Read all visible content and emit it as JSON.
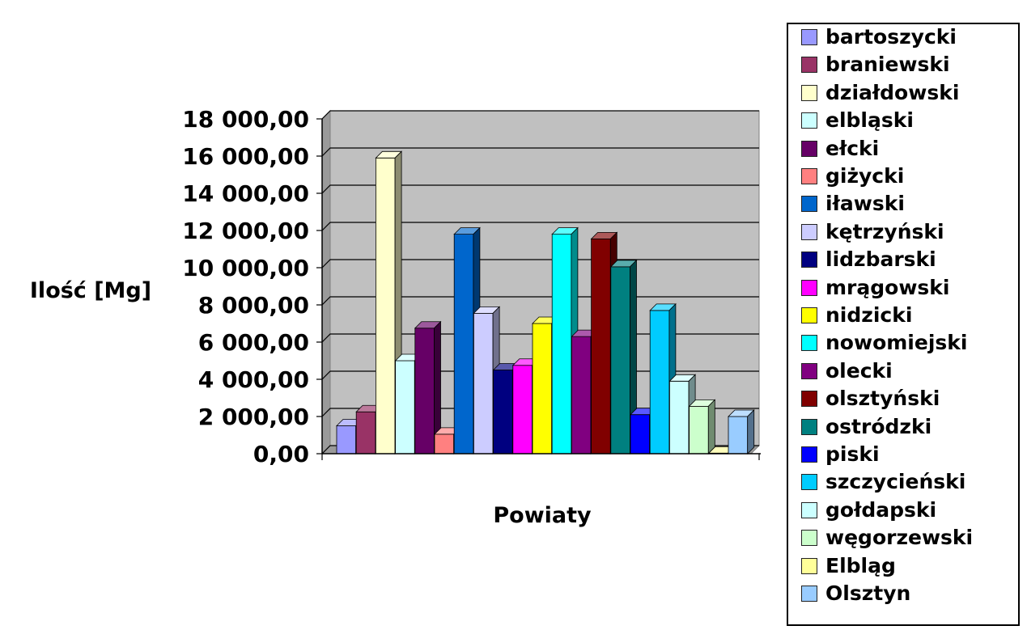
{
  "chart_data": {
    "type": "bar",
    "title": "",
    "xlabel": "Powiaty",
    "ylabel": "Ilość [Mg]",
    "ylim": [
      0,
      18000
    ],
    "yticks": [
      "0,00",
      "2 000,00",
      "4 000,00",
      "6 000,00",
      "8 000,00",
      "10 000,00",
      "12 000,00",
      "14 000,00",
      "16 000,00",
      "18 000,00"
    ],
    "grid": true,
    "legend_position": "right",
    "series": [
      {
        "name": "bartoszycki",
        "value": 1500,
        "color": "#9999ff"
      },
      {
        "name": "braniewski",
        "value": 2250,
        "color": "#993366"
      },
      {
        "name": "działdowski",
        "value": 15900,
        "color": "#ffffcc"
      },
      {
        "name": "elbląski",
        "value": 5000,
        "color": "#ccffff"
      },
      {
        "name": "ełcki",
        "value": 6750,
        "color": "#660066"
      },
      {
        "name": "giżycki",
        "value": 1050,
        "color": "#ff8080"
      },
      {
        "name": "iławski",
        "value": 11800,
        "color": "#0066cc"
      },
      {
        "name": "kętrzyński",
        "value": 7550,
        "color": "#ccccff"
      },
      {
        "name": "lidzbarski",
        "value": 4500,
        "color": "#000080"
      },
      {
        "name": "mrągowski",
        "value": 4750,
        "color": "#ff00ff"
      },
      {
        "name": "nidzicki",
        "value": 7000,
        "color": "#ffff00"
      },
      {
        "name": "nowomiejski",
        "value": 11800,
        "color": "#00ffff"
      },
      {
        "name": "olecki",
        "value": 6300,
        "color": "#800080"
      },
      {
        "name": "olsztyński",
        "value": 11550,
        "color": "#800000"
      },
      {
        "name": "ostródzki",
        "value": 10050,
        "color": "#008080"
      },
      {
        "name": "piski",
        "value": 2100,
        "color": "#0000ff"
      },
      {
        "name": "szczycieński",
        "value": 7700,
        "color": "#00ccff"
      },
      {
        "name": "gołdapski",
        "value": 3900,
        "color": "#ccffff"
      },
      {
        "name": "węgorzewski",
        "value": 2550,
        "color": "#ccffcc"
      },
      {
        "name": "Elbląg",
        "value": 30,
        "color": "#ffff99"
      },
      {
        "name": "Olsztyn",
        "value": 2000,
        "color": "#99ccff"
      }
    ]
  }
}
